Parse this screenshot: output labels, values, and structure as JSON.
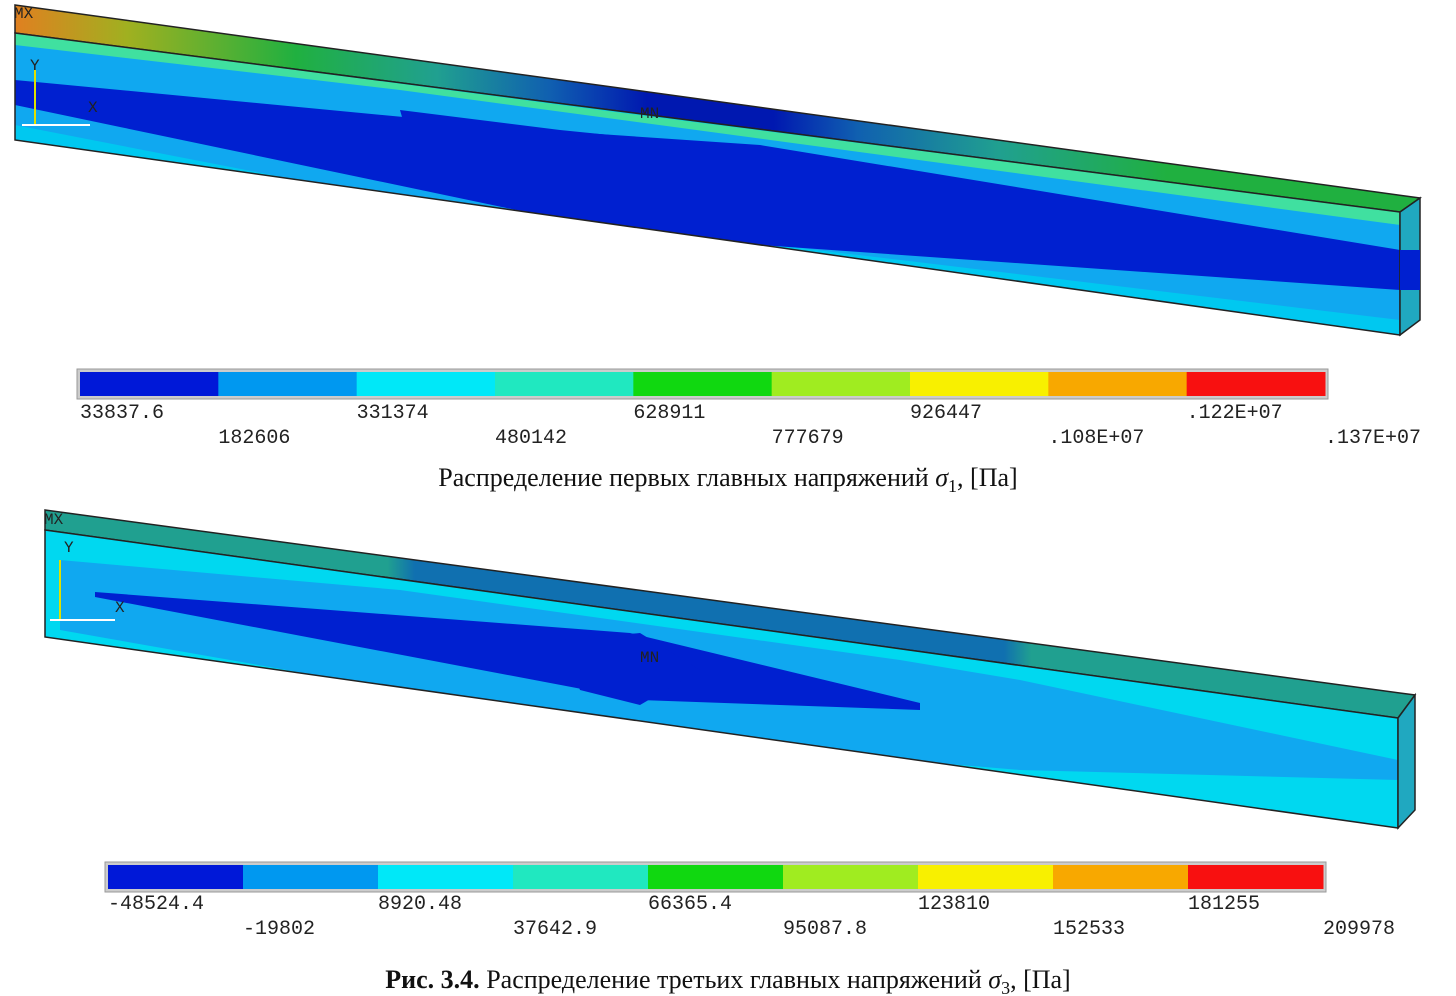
{
  "panels": [
    {
      "plot_labels": {
        "max": "MX",
        "min": "MN",
        "axis_x": "X",
        "axis_y": "Y"
      },
      "legend": {
        "labels": [
          "33837.6",
          "182606",
          "331374",
          "480142",
          "628911",
          "777679",
          "926447",
          ".108E+07",
          ".122E+07",
          ".137E+07"
        ],
        "colors": [
          "#0018d8",
          "#0098f0",
          "#00e8f8",
          "#20e8c0",
          "#10d810",
          "#a0ec20",
          "#f8f000",
          "#f8a800",
          "#f81010"
        ]
      },
      "caption": {
        "prefix": "",
        "text": "Распределение первых главных напряжений ",
        "symbol": "σ",
        "subscript": "1",
        "suffix": ", [Па]"
      }
    },
    {
      "plot_labels": {
        "max": "MX",
        "min": "MN",
        "axis_x": "X",
        "axis_y": "Y"
      },
      "legend": {
        "labels": [
          "-48524.4",
          "-19802",
          "8920.48",
          "37642.9",
          "66365.4",
          "95087.8",
          "123810",
          "152533",
          "181255",
          "209978"
        ],
        "colors": [
          "#0018d8",
          "#0098f0",
          "#00e8f8",
          "#20e8c0",
          "#10d810",
          "#a0ec20",
          "#f8f000",
          "#f8a800",
          "#f81010"
        ]
      },
      "caption": {
        "prefix": "Рис. 3.4.",
        "text": " Распределение третьих главных напряжений ",
        "symbol": "σ",
        "subscript": "3",
        "suffix": ", [Па]"
      }
    }
  ]
}
